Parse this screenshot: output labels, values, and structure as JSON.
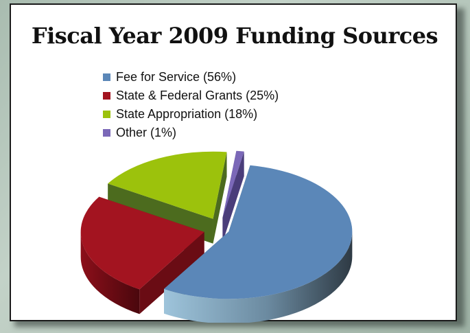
{
  "chart_data": {
    "type": "pie",
    "title": "Fiscal Year 2009 Funding Sources",
    "legend_position": "top",
    "slices": [
      {
        "label": "Fee for Service (56%)",
        "value": 56,
        "color": "#5b87b8",
        "side": "#3e4f5e"
      },
      {
        "label": "State & Federal Grants (25%)",
        "value": 25,
        "color": "#a31420",
        "side": "#6a0c14"
      },
      {
        "label": "State Appropriation (18%)",
        "value": 18,
        "color": "#9cc20c",
        "side": "#4c6b1e"
      },
      {
        "label": "Other (1%)",
        "value": 1,
        "color": "#7b68b8",
        "side": "#4a3d7a"
      }
    ]
  }
}
